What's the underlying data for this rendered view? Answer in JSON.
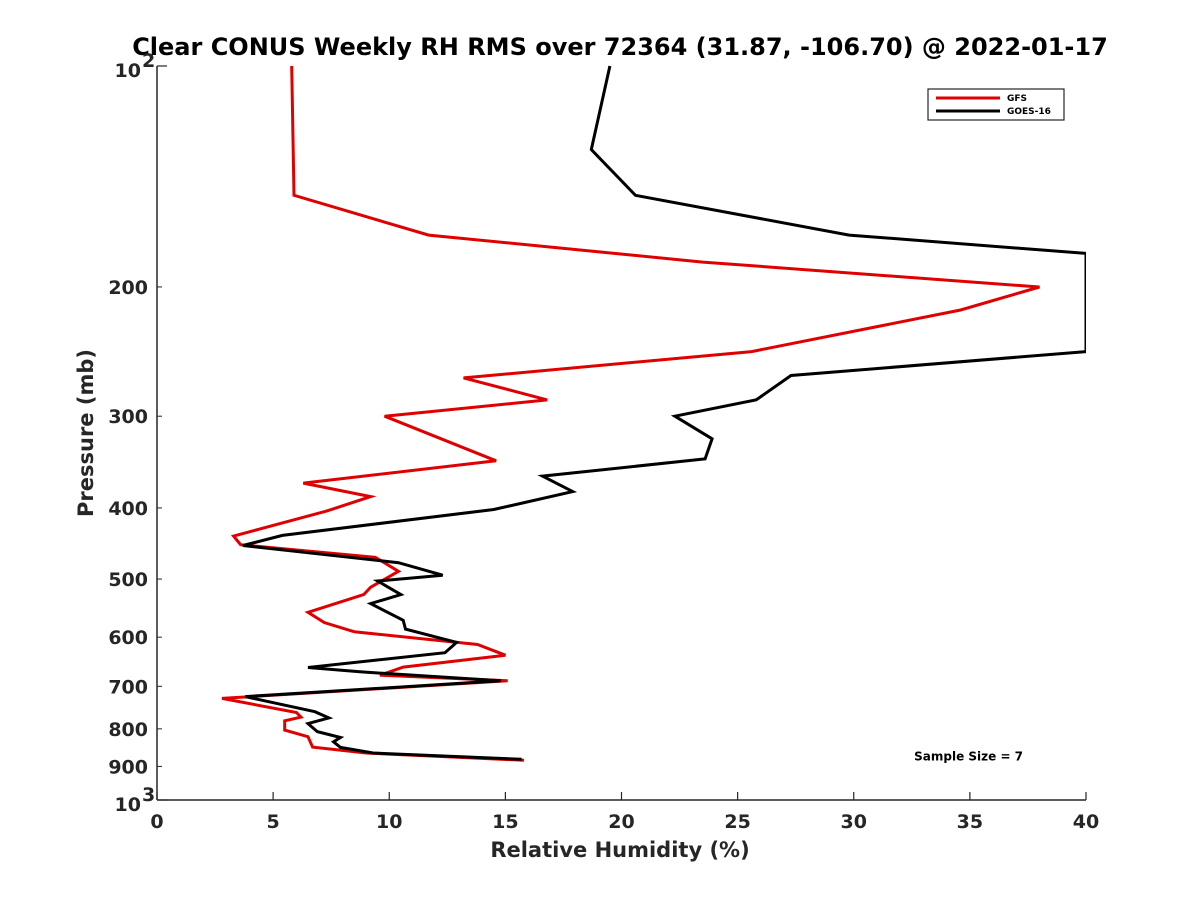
{
  "chart_data": {
    "type": "line",
    "title": "Clear CONUS Weekly RH RMS over 72364 (31.87, -106.70) @ 2022-01-17",
    "xlabel": "Relative Humidity (%)",
    "ylabel": "Pressure (mb)",
    "xlim": [
      0,
      40
    ],
    "ylim": [
      100,
      1000
    ],
    "y_scale": "log",
    "y_reversed": true,
    "grid": false,
    "legend_position": "top-right",
    "x_ticks": [
      0,
      5,
      10,
      15,
      20,
      25,
      30,
      35,
      40
    ],
    "x_tick_labels": [
      "0",
      "5",
      "10",
      "15",
      "20",
      "25",
      "30",
      "35",
      "40"
    ],
    "y_ticks": [
      200,
      300,
      400,
      500,
      600,
      700,
      800,
      900
    ],
    "y_tick_labels": [
      "200",
      "300",
      "400",
      "500",
      "600",
      "700",
      "800",
      "900"
    ],
    "y_end_labels": [
      {
        "value": 100,
        "base": "10",
        "exp": "2"
      },
      {
        "value": 1000,
        "base": "10",
        "exp": "3"
      }
    ],
    "series": [
      {
        "name": "GFS",
        "color": "#e00000",
        "points": [
          [
            5.8,
            100
          ],
          [
            5.9,
            150
          ],
          [
            11.7,
            170
          ],
          [
            23.5,
            185
          ],
          [
            38.0,
            200
          ],
          [
            34.6,
            215
          ],
          [
            25.6,
            245
          ],
          [
            13.2,
            266
          ],
          [
            16.8,
            285
          ],
          [
            9.8,
            300
          ],
          [
            14.6,
            345
          ],
          [
            6.3,
            370
          ],
          [
            9.2,
            386
          ],
          [
            7.3,
            404
          ],
          [
            3.3,
            437
          ],
          [
            3.6,
            449
          ],
          [
            9.4,
            467
          ],
          [
            10.4,
            488
          ],
          [
            9.2,
            513
          ],
          [
            8.9,
            525
          ],
          [
            6.5,
            555
          ],
          [
            7.2,
            573
          ],
          [
            8.5,
            590
          ],
          [
            13.8,
            614
          ],
          [
            15.0,
            635
          ],
          [
            10.6,
            659
          ],
          [
            9.6,
            676
          ],
          [
            15.1,
            688
          ],
          [
            2.8,
            727
          ],
          [
            6.0,
            760
          ],
          [
            6.2,
            771
          ],
          [
            5.5,
            780
          ],
          [
            5.5,
            803
          ],
          [
            6.5,
            820
          ],
          [
            6.7,
            847
          ],
          [
            9.0,
            863
          ],
          [
            15.8,
            883
          ]
        ]
      },
      {
        "name": "GOES-16",
        "color": "#000000",
        "points": [
          [
            19.5,
            100
          ],
          [
            18.7,
            130
          ],
          [
            20.6,
            150
          ],
          [
            29.8,
            170
          ],
          [
            40.0,
            180
          ],
          [
            40.0,
            245
          ],
          [
            27.3,
            264
          ],
          [
            25.8,
            285
          ],
          [
            22.3,
            300
          ],
          [
            23.9,
            322
          ],
          [
            23.6,
            343
          ],
          [
            16.6,
            362
          ],
          [
            17.9,
            380
          ],
          [
            14.5,
            402
          ],
          [
            5.4,
            436
          ],
          [
            3.7,
            450
          ],
          [
            10.4,
            475
          ],
          [
            12.3,
            494
          ],
          [
            9.5,
            503
          ],
          [
            10.5,
            525
          ],
          [
            9.2,
            540
          ],
          [
            10.6,
            569
          ],
          [
            10.7,
            585
          ],
          [
            12.9,
            610
          ],
          [
            12.4,
            630
          ],
          [
            6.5,
            660
          ],
          [
            8.8,
            669
          ],
          [
            14.8,
            688
          ],
          [
            3.8,
            723
          ],
          [
            6.8,
            758
          ],
          [
            7.4,
            773
          ],
          [
            6.5,
            787
          ],
          [
            6.9,
            807
          ],
          [
            7.9,
            822
          ],
          [
            7.6,
            833
          ],
          [
            7.9,
            848
          ],
          [
            9.3,
            863
          ],
          [
            15.7,
            880
          ]
        ]
      }
    ],
    "annotations": [
      {
        "text": "Sample Size = 7",
        "x": 32.6,
        "y": 900
      }
    ]
  }
}
